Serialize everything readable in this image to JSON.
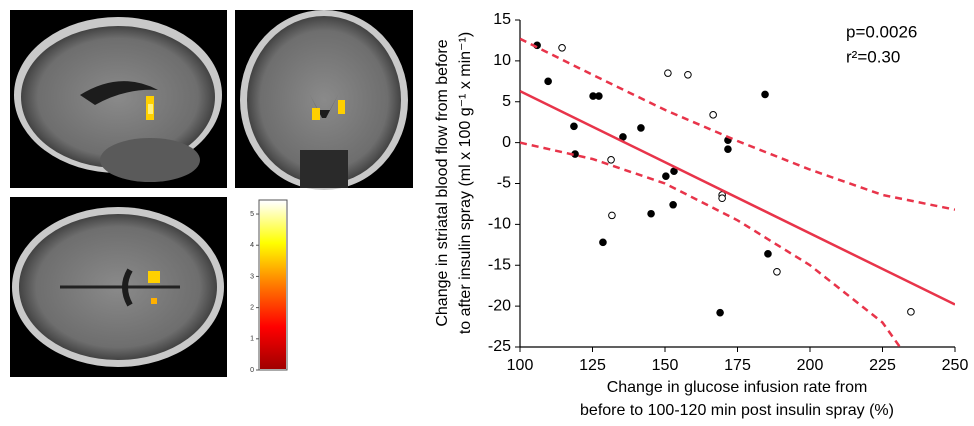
{
  "chart_data": [
    {
      "type": "scatter",
      "xlabel": [
        "Change in glucose infusion rate from",
        "before to 100-120 min post insulin spray (%)"
      ],
      "ylabel": [
        "Change in striatal blood flow from before",
        "to after insulin spray (ml x 100 g⁻¹ x min⁻¹)"
      ],
      "annotations": [
        "p=0.0026",
        "r²=0.30"
      ],
      "xlim": [
        100,
        250
      ],
      "xticks": [
        100,
        125,
        150,
        175,
        200,
        225,
        250
      ],
      "ylim": [
        -25,
        15
      ],
      "yticks": [
        -25,
        -20,
        -15,
        -10,
        -5,
        0,
        5,
        10,
        15
      ],
      "series": [
        {
          "marker": "filled",
          "color": "#000000",
          "x": [
            105.9,
            109.7,
            125.2,
            127.2,
            118.6,
            119.0,
            135.5,
            141.7,
            150.3,
            153.1,
            152.8,
            145.2,
            128.6,
            171.7,
            171.7,
            184.5,
            185.5,
            169.0
          ],
          "values": [
            11.9,
            7.5,
            5.7,
            5.7,
            2.0,
            -1.4,
            0.7,
            1.8,
            -4.1,
            -3.5,
            -7.6,
            -8.7,
            -12.2,
            0.3,
            -0.8,
            5.9,
            -13.6,
            -20.8
          ]
        },
        {
          "marker": "open",
          "color": "#000000",
          "x": [
            114.5,
            151.0,
            157.9,
            166.6,
            131.4,
            169.7,
            169.7,
            131.7,
            188.6,
            234.8
          ],
          "values": [
            11.6,
            8.5,
            8.3,
            3.4,
            -2.1,
            -6.4,
            -6.8,
            -8.9,
            -15.8,
            -20.7
          ]
        },
        {
          "marker": "line",
          "style": "solid",
          "color": "#e8344a",
          "x": [
            100,
            250
          ],
          "values": [
            6.3,
            -19.8
          ]
        },
        {
          "marker": "line",
          "style": "dashed",
          "color": "#e8344a",
          "x": [
            100,
            125,
            150,
            175,
            200,
            225,
            250
          ],
          "values": [
            12.7,
            8.3,
            4.0,
            0.2,
            -3.3,
            -6.4,
            -8.2
          ]
        },
        {
          "marker": "line",
          "style": "dashed",
          "color": "#e8344a",
          "x": [
            100,
            125,
            150,
            175,
            200,
            225,
            231
          ],
          "values": [
            0,
            -2,
            -5,
            -9.5,
            -15,
            -22,
            -25
          ]
        }
      ]
    },
    {
      "type": "colorbar",
      "ylim": [
        0,
        5.45
      ],
      "yticks": [
        0,
        1,
        2,
        3,
        4,
        5
      ],
      "colors": [
        "#a00000",
        "#ff0000",
        "#ff7a00",
        "#ffff00",
        "#ffffff"
      ]
    }
  ]
}
